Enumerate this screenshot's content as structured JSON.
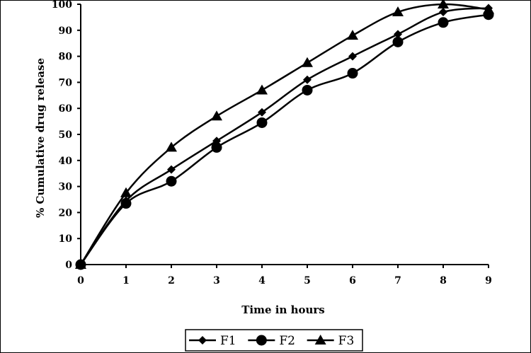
{
  "chart_data": {
    "type": "line",
    "xlabel": "Time in hours",
    "ylabel": "% Cumulative drug release",
    "xlim": [
      0,
      9
    ],
    "ylim": [
      0,
      100
    ],
    "x_ticks": [
      "0",
      "1",
      "2",
      "3",
      "4",
      "5",
      "6",
      "7",
      "8",
      "9"
    ],
    "y_ticks": [
      "0",
      "10",
      "20",
      "30",
      "40",
      "50",
      "60",
      "70",
      "80",
      "90",
      "100"
    ],
    "x": [
      0,
      1,
      2,
      3,
      4,
      5,
      6,
      7,
      8,
      9
    ],
    "grid": false,
    "legend_position": "bottom",
    "series": [
      {
        "name": "F1",
        "marker": "diamond",
        "values": [
          0,
          24.5,
          36.5,
          47.5,
          58.5,
          71,
          80,
          88.5,
          97,
          98.5
        ]
      },
      {
        "name": "F2",
        "marker": "circle",
        "values": [
          0,
          23.5,
          32,
          45,
          54.5,
          67,
          73.5,
          85.5,
          93,
          96
        ]
      },
      {
        "name": "F3",
        "marker": "triangle",
        "values": [
          0,
          27.5,
          45,
          57,
          67,
          77.5,
          88,
          97,
          100,
          98
        ]
      }
    ]
  }
}
